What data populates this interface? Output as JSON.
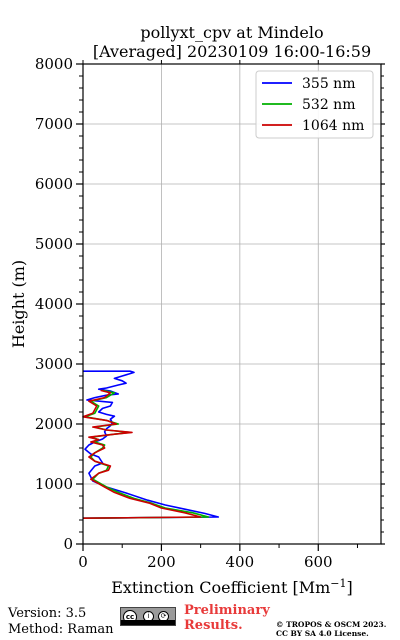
{
  "chart_data": {
    "type": "line",
    "title": "pollyxt_cpv at Mindelo",
    "subtitle": "[Averaged] 20230109 16:00-16:59",
    "xlabel": "Extinction Coefficient [Mm",
    "xlabel_sup": "−1",
    "xlabel_end": "]",
    "ylabel": "Height (m)",
    "xlim": [
      0,
      760
    ],
    "ylim": [
      0,
      8000
    ],
    "xticks": [
      0,
      200,
      400,
      600
    ],
    "yticks": [
      0,
      1000,
      2000,
      3000,
      4000,
      5000,
      6000,
      7000,
      8000
    ],
    "grid": true,
    "legend_position": "top-right",
    "series": [
      {
        "name": "355 nm",
        "color": "#0000ff",
        "x": [
          0,
          345,
          310,
          260,
          210,
          165,
          110,
          60,
          25,
          15,
          30,
          50,
          40,
          20,
          5,
          15,
          30,
          50,
          60,
          55,
          60,
          70,
          75,
          70,
          80,
          60,
          40,
          50,
          70,
          75,
          10,
          30,
          60,
          90,
          70,
          40,
          60,
          90,
          110,
          100,
          80,
          100,
          120,
          130,
          120,
          80,
          0
        ],
        "y": [
          430,
          450,
          510,
          580,
          650,
          730,
          850,
          950,
          1050,
          1180,
          1300,
          1350,
          1450,
          1500,
          1580,
          1650,
          1700,
          1750,
          1800,
          1870,
          1920,
          1970,
          2020,
          2080,
          2130,
          2160,
          2200,
          2260,
          2300,
          2360,
          2400,
          2440,
          2480,
          2500,
          2550,
          2580,
          2600,
          2650,
          2680,
          2720,
          2760,
          2800,
          2840,
          2860,
          2880,
          2880,
          2880
        ]
      },
      {
        "name": "532 nm",
        "color": "#00b000",
        "x": [
          0,
          320,
          280,
          210,
          175,
          130,
          90,
          60,
          25,
          40,
          60,
          65,
          30,
          20,
          30,
          50,
          55,
          30,
          40,
          20,
          80,
          120,
          60,
          30,
          90,
          60,
          5,
          30,
          40,
          20,
          60,
          80,
          50
        ],
        "y": [
          430,
          450,
          520,
          600,
          680,
          760,
          860,
          950,
          1080,
          1180,
          1230,
          1300,
          1380,
          1450,
          1520,
          1600,
          1650,
          1700,
          1740,
          1780,
          1830,
          1860,
          1900,
          1950,
          2000,
          2060,
          2120,
          2180,
          2300,
          2380,
          2440,
          2520,
          2560
        ]
      },
      {
        "name": "1064 nm",
        "color": "#cc0000",
        "x": [
          0,
          300,
          260,
          200,
          170,
          120,
          80,
          55,
          20,
          40,
          65,
          70,
          30,
          15,
          30,
          55,
          50,
          20,
          40,
          15,
          80,
          125,
          60,
          25,
          85,
          60,
          0,
          25,
          35,
          15,
          55,
          70,
          45
        ],
        "y": [
          430,
          450,
          520,
          600,
          680,
          760,
          860,
          950,
          1080,
          1180,
          1230,
          1300,
          1380,
          1450,
          1520,
          1600,
          1650,
          1700,
          1740,
          1780,
          1830,
          1860,
          1900,
          1950,
          2000,
          2060,
          2120,
          2180,
          2300,
          2380,
          2440,
          2520,
          2560
        ]
      }
    ]
  },
  "footer": {
    "version": "Version: 3.5",
    "method": "Method: Raman",
    "cc_label": "cc",
    "cc_by": "BY",
    "cc_sa": "SA",
    "prelim_line1": "Preliminary",
    "prelim_line2": "Results.",
    "copyright_line1": "© TROPOS & OSCM 2023.",
    "copyright_line2": "CC BY SA 4.0 License."
  }
}
